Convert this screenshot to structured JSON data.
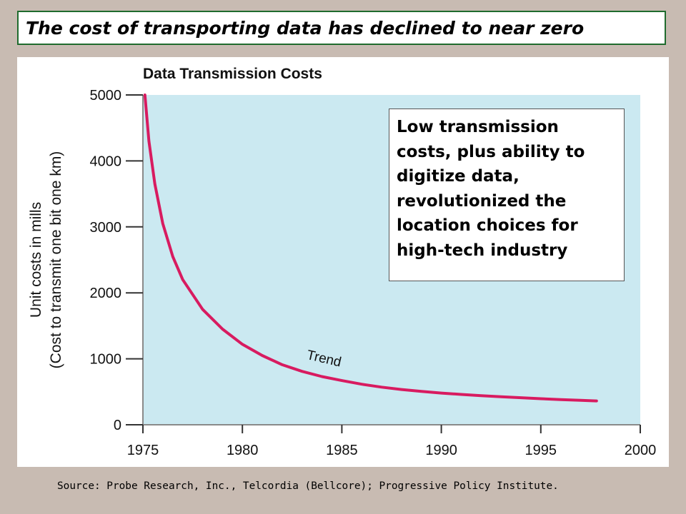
{
  "header": {
    "title": "The cost of transporting data has declined to near zero"
  },
  "callout": {
    "lines": [
      "Low transmission",
      "costs, plus ability to",
      "digitize data,",
      "revolutionized the",
      "location choices for",
      "high-tech industry"
    ]
  },
  "source": "Source:  Probe Research, Inc., Telcordia (Bellcore); Progressive Policy Institute.",
  "chart_data": {
    "type": "line",
    "title": "Data Transmission Costs",
    "xlabel": "",
    "ylabel": [
      "Unit costs in mills",
      "(Cost to transmit one bit one km)"
    ],
    "xlim": [
      1975,
      2000
    ],
    "ylim": [
      0,
      5000
    ],
    "xticks": [
      1975,
      1980,
      1985,
      1990,
      1995,
      2000
    ],
    "yticks": [
      0,
      1000,
      2000,
      3000,
      4000,
      5000
    ],
    "grid": false,
    "background_color": "#cbe9f1",
    "series": [
      {
        "label": "Trend",
        "color": "#d81b60",
        "points": [
          [
            1975.1,
            5000
          ],
          [
            1975.3,
            4300
          ],
          [
            1975.6,
            3650
          ],
          [
            1976,
            3050
          ],
          [
            1976.5,
            2550
          ],
          [
            1977,
            2200
          ],
          [
            1978,
            1750
          ],
          [
            1979,
            1450
          ],
          [
            1980,
            1220
          ],
          [
            1981,
            1050
          ],
          [
            1982,
            910
          ],
          [
            1983,
            810
          ],
          [
            1984,
            730
          ],
          [
            1985,
            670
          ],
          [
            1986,
            615
          ],
          [
            1987,
            570
          ],
          [
            1988,
            535
          ],
          [
            1989,
            505
          ],
          [
            1990,
            480
          ],
          [
            1991,
            460
          ],
          [
            1992,
            440
          ],
          [
            1993,
            425
          ],
          [
            1994,
            410
          ],
          [
            1995,
            395
          ],
          [
            1996,
            382
          ],
          [
            1997,
            370
          ],
          [
            1997.8,
            362
          ]
        ]
      }
    ],
    "annotations": [
      {
        "text": "Trend",
        "x": 1983.2,
        "y": 1000,
        "rotate": 13
      }
    ]
  }
}
